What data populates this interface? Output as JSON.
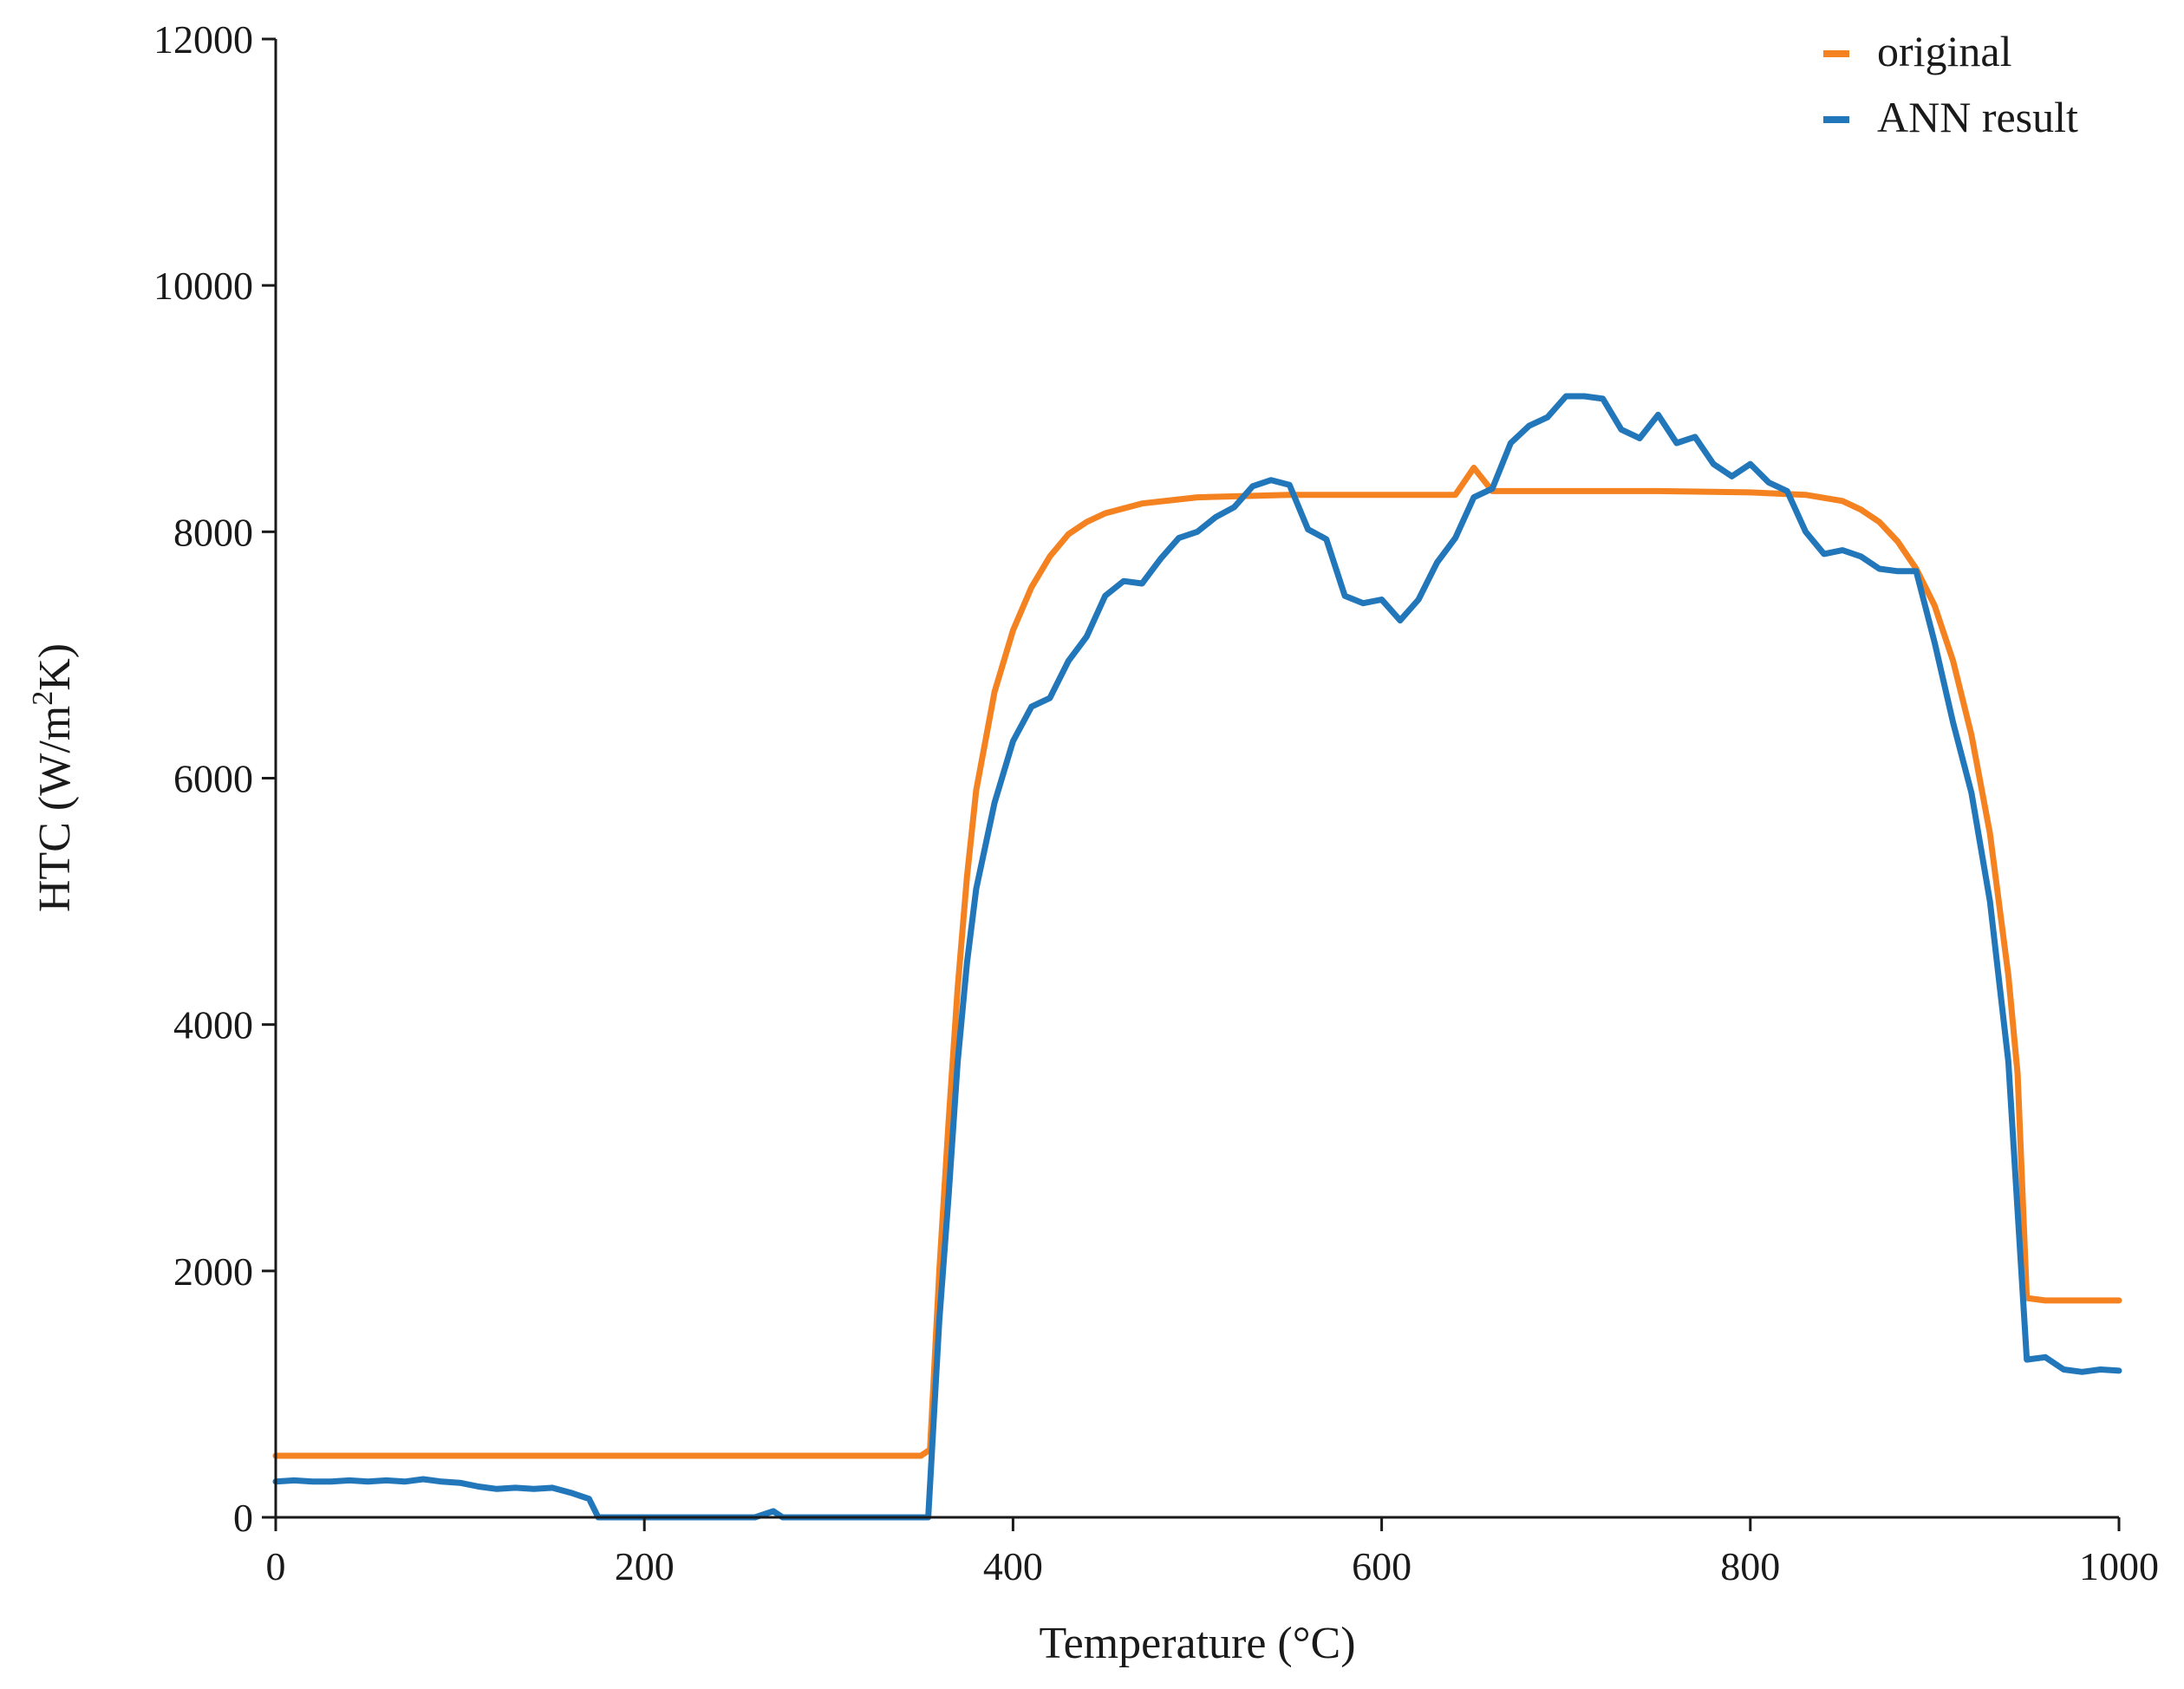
{
  "chart_data": {
    "type": "line",
    "title": "",
    "xlabel": "Temperature (°C)",
    "ylabel_prefix": "HTC (W/m",
    "ylabel_sup": "2",
    "ylabel_suffix": "K)",
    "xlim": [
      0,
      1000
    ],
    "ylim": [
      0,
      12000
    ],
    "x_ticks": [
      0,
      200,
      400,
      600,
      800,
      1000
    ],
    "y_ticks": [
      0,
      2000,
      4000,
      6000,
      8000,
      10000,
      12000
    ],
    "x_tick_labels": [
      "0",
      "200",
      "400",
      "600",
      "800",
      "1000"
    ],
    "y_tick_labels": [
      "0",
      "2000",
      "4000",
      "6000",
      "8000",
      "10000",
      "12000"
    ],
    "grid": false,
    "legend_position": "top-right",
    "series": [
      {
        "name": "original",
        "color": "#f58220",
        "points": [
          [
            0,
            500
          ],
          [
            100,
            500
          ],
          [
            200,
            500
          ],
          [
            300,
            500
          ],
          [
            350,
            500
          ],
          [
            355,
            550
          ],
          [
            360,
            2000
          ],
          [
            365,
            3200
          ],
          [
            370,
            4300
          ],
          [
            375,
            5200
          ],
          [
            380,
            5900
          ],
          [
            390,
            6700
          ],
          [
            400,
            7200
          ],
          [
            410,
            7550
          ],
          [
            420,
            7800
          ],
          [
            430,
            7980
          ],
          [
            440,
            8080
          ],
          [
            450,
            8150
          ],
          [
            470,
            8230
          ],
          [
            500,
            8280
          ],
          [
            550,
            8300
          ],
          [
            600,
            8300
          ],
          [
            640,
            8300
          ],
          [
            650,
            8520
          ],
          [
            660,
            8330
          ],
          [
            700,
            8330
          ],
          [
            750,
            8330
          ],
          [
            800,
            8320
          ],
          [
            830,
            8300
          ],
          [
            850,
            8250
          ],
          [
            860,
            8180
          ],
          [
            870,
            8080
          ],
          [
            880,
            7920
          ],
          [
            890,
            7700
          ],
          [
            900,
            7400
          ],
          [
            910,
            6950
          ],
          [
            920,
            6350
          ],
          [
            930,
            5550
          ],
          [
            940,
            4400
          ],
          [
            945,
            3600
          ],
          [
            950,
            1780
          ],
          [
            960,
            1760
          ],
          [
            1000,
            1760
          ]
        ]
      },
      {
        "name": "ANN result",
        "color": "#2177b9",
        "points": [
          [
            0,
            290
          ],
          [
            10,
            300
          ],
          [
            20,
            290
          ],
          [
            30,
            290
          ],
          [
            40,
            300
          ],
          [
            50,
            290
          ],
          [
            60,
            300
          ],
          [
            70,
            290
          ],
          [
            80,
            310
          ],
          [
            90,
            290
          ],
          [
            100,
            280
          ],
          [
            110,
            250
          ],
          [
            120,
            230
          ],
          [
            130,
            240
          ],
          [
            140,
            230
          ],
          [
            150,
            240
          ],
          [
            160,
            200
          ],
          [
            170,
            150
          ],
          [
            175,
            0
          ],
          [
            200,
            0
          ],
          [
            260,
            0
          ],
          [
            270,
            50
          ],
          [
            275,
            0
          ],
          [
            354,
            0
          ],
          [
            360,
            1600
          ],
          [
            365,
            2600
          ],
          [
            370,
            3700
          ],
          [
            375,
            4500
          ],
          [
            380,
            5100
          ],
          [
            390,
            5800
          ],
          [
            400,
            6300
          ],
          [
            410,
            6580
          ],
          [
            420,
            6650
          ],
          [
            430,
            6950
          ],
          [
            440,
            7150
          ],
          [
            450,
            7480
          ],
          [
            460,
            7600
          ],
          [
            470,
            7580
          ],
          [
            480,
            7780
          ],
          [
            490,
            7950
          ],
          [
            500,
            8000
          ],
          [
            510,
            8120
          ],
          [
            520,
            8200
          ],
          [
            530,
            8370
          ],
          [
            540,
            8420
          ],
          [
            550,
            8380
          ],
          [
            560,
            8020
          ],
          [
            570,
            7940
          ],
          [
            580,
            7480
          ],
          [
            590,
            7420
          ],
          [
            600,
            7450
          ],
          [
            610,
            7280
          ],
          [
            620,
            7450
          ],
          [
            630,
            7750
          ],
          [
            640,
            7950
          ],
          [
            650,
            8280
          ],
          [
            660,
            8350
          ],
          [
            670,
            8720
          ],
          [
            680,
            8860
          ],
          [
            690,
            8930
          ],
          [
            700,
            9100
          ],
          [
            710,
            9100
          ],
          [
            720,
            9080
          ],
          [
            730,
            8830
          ],
          [
            740,
            8760
          ],
          [
            750,
            8950
          ],
          [
            760,
            8720
          ],
          [
            770,
            8770
          ],
          [
            780,
            8550
          ],
          [
            790,
            8450
          ],
          [
            800,
            8550
          ],
          [
            810,
            8400
          ],
          [
            820,
            8330
          ],
          [
            830,
            8000
          ],
          [
            840,
            7820
          ],
          [
            850,
            7850
          ],
          [
            860,
            7800
          ],
          [
            870,
            7700
          ],
          [
            880,
            7680
          ],
          [
            890,
            7680
          ],
          [
            900,
            7100
          ],
          [
            910,
            6450
          ],
          [
            920,
            5880
          ],
          [
            930,
            5000
          ],
          [
            940,
            3700
          ],
          [
            950,
            1280
          ],
          [
            960,
            1300
          ],
          [
            970,
            1200
          ],
          [
            980,
            1180
          ],
          [
            990,
            1200
          ],
          [
            1000,
            1190
          ]
        ]
      }
    ]
  }
}
